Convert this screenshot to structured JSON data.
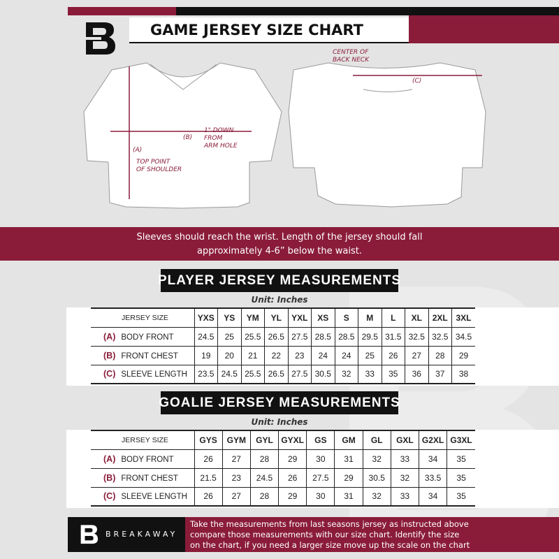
{
  "header": {
    "title": "GAME JERSEY SIZE CHART",
    "logo_letter": "B"
  },
  "diagram": {
    "center_back_neck": [
      "CENTER OF",
      "BACK NECK"
    ],
    "label_a": "(A)",
    "label_b": "(B)",
    "label_c": "(C)",
    "top_point": [
      "TOP POINT",
      "OF SHOULDER"
    ],
    "one_inch_down": [
      "1\" DOWN",
      "FROM",
      "ARM HOLE"
    ]
  },
  "banner": {
    "lines": [
      "Sleeves should reach the wrist. Length of the jersey should fall",
      "approximately 4-6” below the waist."
    ]
  },
  "player": {
    "title": "PLAYER JERSEY MEASUREMENTS",
    "unit": "Unit: Inches",
    "size_label": "JERSEY SIZE",
    "sizes": [
      "YXS",
      "YS",
      "YM",
      "YL",
      "YXL",
      "XS",
      "S",
      "M",
      "L",
      "XL",
      "2XL",
      "3XL"
    ],
    "rows": [
      {
        "tag": "(A)",
        "label": "BODY FRONT",
        "values": [
          "24.5",
          "25",
          "25.5",
          "26.5",
          "27.5",
          "28.5",
          "28.5",
          "29.5",
          "31.5",
          "32.5",
          "32.5",
          "34.5"
        ]
      },
      {
        "tag": "(B)",
        "label": "FRONT CHEST",
        "values": [
          "19",
          "20",
          "21",
          "22",
          "23",
          "24",
          "24",
          "25",
          "26",
          "27",
          "28",
          "29"
        ]
      },
      {
        "tag": "(C)",
        "label": "SLEEVE LENGTH",
        "values": [
          "23.5",
          "24.5",
          "25.5",
          "26.5",
          "27.5",
          "30.5",
          "32",
          "33",
          "35",
          "36",
          "37",
          "38"
        ]
      }
    ]
  },
  "goalie": {
    "title": "GOALIE JERSEY MEASUREMENTS",
    "unit": "Unit: Inches",
    "size_label": "JERSEY SIZE",
    "sizes": [
      "GYS",
      "GYM",
      "GYL",
      "GYXL",
      "GS",
      "GM",
      "GL",
      "GXL",
      "G2XL",
      "G3XL"
    ],
    "rows": [
      {
        "tag": "(A)",
        "label": "BODY FRONT",
        "values": [
          "26",
          "27",
          "28",
          "29",
          "30",
          "31",
          "32",
          "33",
          "34",
          "35"
        ]
      },
      {
        "tag": "(B)",
        "label": "FRONT CHEST",
        "values": [
          "21.5",
          "23",
          "24.5",
          "26",
          "27.5",
          "29",
          "30.5",
          "32",
          "33.5",
          "35"
        ]
      },
      {
        "tag": "(C)",
        "label": "SLEEVE LENGTH",
        "values": [
          "26",
          "27",
          "28",
          "29",
          "30",
          "31",
          "32",
          "33",
          "34",
          "35"
        ]
      }
    ]
  },
  "footer": {
    "brand": "BREAKAWAY",
    "logo_letter": "B",
    "text": [
      "Take the measurements from last seasons jersey as instructed above",
      "compare those measurements  with our size chart. Identify the size",
      "on the chart, if you need a larger size move up the scale on the chart"
    ]
  },
  "colors": {
    "accent": "#8a1c3a",
    "dark": "#111111",
    "background": "#e4e4e4"
  }
}
